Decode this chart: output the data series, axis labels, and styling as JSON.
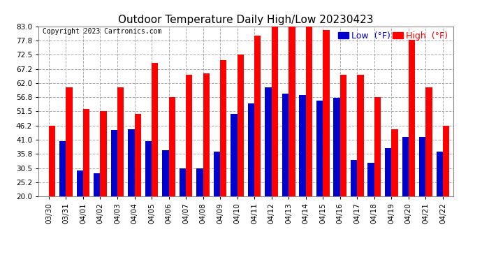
{
  "title": "Outdoor Temperature Daily High/Low 20230423",
  "copyright": "Copyright 2023 Cartronics.com",
  "legend_low": "Low",
  "legend_high": "High",
  "legend_unit": "(°F)",
  "dates": [
    "03/30",
    "03/31",
    "04/01",
    "04/02",
    "04/03",
    "04/04",
    "04/05",
    "04/06",
    "04/07",
    "04/08",
    "04/09",
    "04/10",
    "04/11",
    "04/12",
    "04/13",
    "04/14",
    "04/15",
    "04/16",
    "04/17",
    "04/18",
    "04/19",
    "04/20",
    "04/21",
    "04/22"
  ],
  "highs": [
    46.2,
    60.5,
    52.5,
    51.5,
    60.5,
    50.5,
    69.5,
    56.8,
    65.0,
    65.5,
    70.5,
    72.5,
    79.5,
    83.0,
    83.0,
    83.0,
    81.5,
    65.0,
    65.0,
    56.8,
    45.0,
    78.0,
    60.5,
    46.2
  ],
  "lows": [
    20.0,
    40.5,
    29.5,
    28.5,
    44.5,
    45.0,
    40.5,
    37.0,
    30.5,
    30.5,
    36.5,
    50.5,
    54.5,
    60.5,
    58.0,
    57.5,
    55.5,
    56.5,
    33.5,
    32.5,
    38.0,
    42.0,
    42.0,
    36.5
  ],
  "color_high": "#ff0000",
  "color_low": "#0000cc",
  "color_background": "#ffffff",
  "color_grid": "#aaaaaa",
  "yticks": [
    20.0,
    25.2,
    30.5,
    35.8,
    41.0,
    46.2,
    51.5,
    56.8,
    62.0,
    67.2,
    72.5,
    77.8,
    83.0
  ],
  "ymin": 20.0,
  "ymax": 83.0,
  "title_fontsize": 11,
  "copyright_fontsize": 7,
  "legend_fontsize": 9,
  "tick_fontsize": 7.5,
  "bar_width": 0.38
}
